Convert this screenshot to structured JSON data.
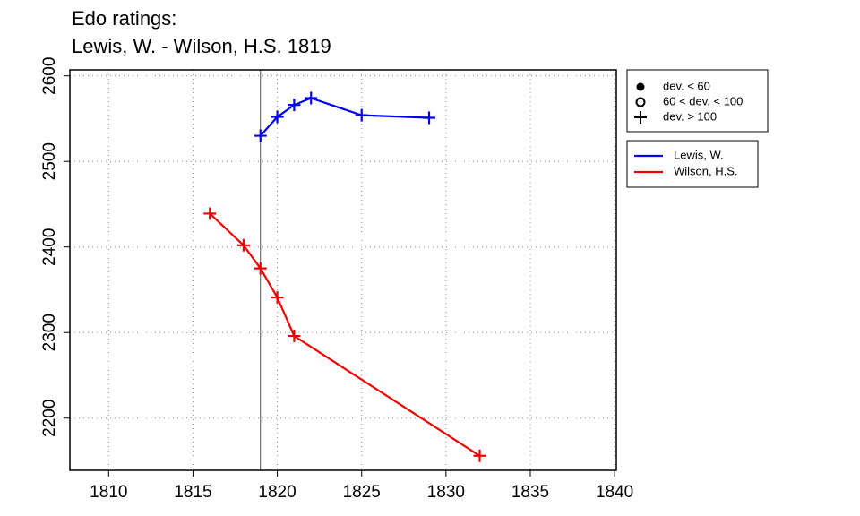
{
  "chart_data": {
    "type": "line",
    "title": "Edo ratings:",
    "subtitle": "Lewis, W. - Wilson, H.S. 1819",
    "xlim": [
      1807.7,
      1840.1
    ],
    "xticks": [
      1810,
      1815,
      1820,
      1825,
      1830,
      1835,
      1840
    ],
    "ylim": [
      2139,
      2607
    ],
    "yticks": [
      2200,
      2300,
      2400,
      2500,
      2600
    ],
    "grid": true,
    "vline": 1819,
    "legend": "right",
    "marker_legend": [
      {
        "label": "dev. < 60",
        "marker": "filled-circle"
      },
      {
        "label": "60 < dev. < 100",
        "marker": "open-circle"
      },
      {
        "label": "dev. > 100",
        "marker": "plus"
      }
    ],
    "series": [
      {
        "name": "Lewis, W.",
        "color": "#0000ee",
        "marker": "plus",
        "x": [
          1819,
          1820,
          1821,
          1822,
          1825,
          1829
        ],
        "values": [
          2530,
          2552,
          2566,
          2574,
          2554,
          2551
        ]
      },
      {
        "name": "Wilson, H.S.",
        "color": "#ee0000",
        "marker": "plus",
        "x": [
          1816,
          1818,
          1819,
          1820,
          1821,
          1832
        ],
        "values": [
          2439,
          2402,
          2375,
          2341,
          2296,
          2156
        ]
      }
    ]
  }
}
